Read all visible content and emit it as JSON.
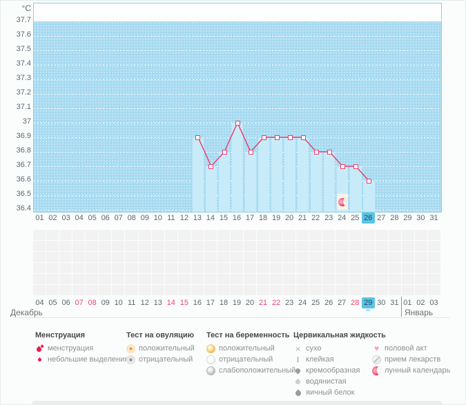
{
  "unit_label": "°C",
  "months": {
    "left": "Декабрь",
    "right": "Январь"
  },
  "chart_data": {
    "type": "line",
    "title": "",
    "xlabel": "",
    "ylabel": "°C",
    "ylim": [
      36.4,
      37.7
    ],
    "y_step": 0.1,
    "y_tick_labels": [
      "37.7",
      "37.6",
      "37.5",
      "37.4",
      "37.3",
      "37.2",
      "37.1",
      "37",
      "36.9",
      "36.8",
      "36.7",
      "36.6",
      "36.5",
      "36.4"
    ],
    "x_categories": [
      "01",
      "02",
      "03",
      "04",
      "05",
      "06",
      "07",
      "08",
      "09",
      "10",
      "11",
      "12",
      "13",
      "14",
      "15",
      "16",
      "17",
      "18",
      "19",
      "20",
      "21",
      "22",
      "23",
      "24",
      "25",
      "26",
      "27",
      "28",
      "29",
      "30",
      "31"
    ],
    "grid": "dotted-white-horizontal",
    "legend_position": "bottom",
    "series": [
      {
        "points": [
          [
            13,
            36.9
          ],
          [
            14,
            36.7
          ],
          [
            15,
            36.8
          ],
          [
            16,
            37.0
          ],
          [
            17,
            36.8
          ],
          [
            18,
            36.9
          ],
          [
            19,
            36.9
          ],
          [
            20,
            36.9
          ],
          [
            21,
            36.9
          ],
          [
            22,
            36.8
          ],
          [
            23,
            36.8
          ],
          [
            24,
            36.7
          ],
          [
            25,
            36.7
          ],
          [
            26,
            36.6
          ]
        ]
      }
    ],
    "markers": [
      {
        "type": "lunar-calendar",
        "day": 24
      }
    ],
    "highlighted_day": "26"
  },
  "calendar_row2": {
    "dates": [
      "04",
      "05",
      "06",
      "07",
      "08",
      "09",
      "10",
      "11",
      "12",
      "13",
      "14",
      "15",
      "16",
      "17",
      "18",
      "19",
      "20",
      "21",
      "22",
      "23",
      "24",
      "25",
      "26",
      "27",
      "28",
      "29",
      "30",
      "31",
      "01",
      "02",
      "03"
    ],
    "weekend_indices": [
      3,
      4,
      10,
      11,
      17,
      18,
      24
    ],
    "highlighted_index": 25
  },
  "legend": {
    "groups": [
      {
        "title": "Менструация",
        "items": [
          {
            "icon": "menstruation-icon",
            "label": "менструация"
          },
          {
            "icon": "spotting-drop-icon",
            "label": "небольшие выделения"
          }
        ]
      },
      {
        "title": "Тест на овуляцию",
        "items": [
          {
            "icon": "ovulation-positive-icon",
            "label": "положительный"
          },
          {
            "icon": "ovulation-negative-icon",
            "label": "отрицательный"
          }
        ]
      },
      {
        "title": "Тест на беременность",
        "items": [
          {
            "icon": "pregnancy-positive-icon",
            "label": "положительный"
          },
          {
            "icon": "pregnancy-negative-icon",
            "label": "отрицательный"
          },
          {
            "icon": "pregnancy-weak-positive-icon",
            "label": "слабоположительный"
          }
        ]
      },
      {
        "title": "Цервикальная жидкость",
        "items": [
          {
            "icon": "dry-icon",
            "label": "сухо"
          },
          {
            "icon": "sticky-icon",
            "label": "клейкая"
          },
          {
            "icon": "creamy-icon",
            "label": "кремообразная"
          },
          {
            "icon": "watery-icon",
            "label": "водянистая"
          },
          {
            "icon": "egg-white-icon",
            "label": "яичный белок"
          }
        ]
      },
      {
        "title": "",
        "items": [
          {
            "icon": "intercourse-heart-icon",
            "label": "половой акт"
          },
          {
            "icon": "medication-pill-icon",
            "label": "прием лекарств"
          },
          {
            "icon": "lunar-calendar-icon",
            "label": "лунный календарь"
          }
        ]
      }
    ]
  },
  "colors": {
    "plot_background": "#a6daf1",
    "bar": "#c8ebf9",
    "line": "#ee3d6e",
    "highlight_blue": "#59c4e7",
    "weekend_red": "#f0436e",
    "menstruation_red": "#e8194b"
  }
}
